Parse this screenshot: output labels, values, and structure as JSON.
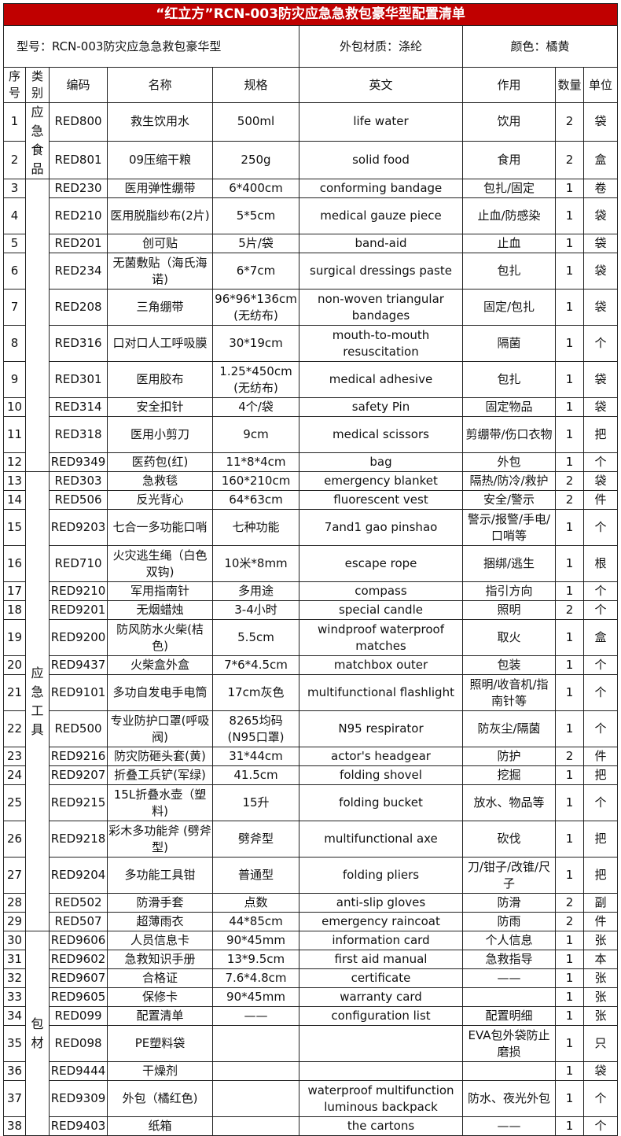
{
  "title": "“红立方”RCN-003防灾应急急救包豪华型配置清单",
  "info": {
    "model": "型号：RCN-003防灾应急急救包豪华型",
    "material": "外包材质：涤纶",
    "color": "颜色：橘黄"
  },
  "headers": [
    "序号",
    "类别",
    "编码",
    "名称",
    "规格",
    "英文",
    "作用",
    "数量",
    "单位"
  ],
  "categories": [
    {
      "label": "应急食品",
      "start": 1,
      "span": 2
    },
    {
      "label": "",
      "start": 3,
      "span": 10
    },
    {
      "label": "应急工具",
      "start": 13,
      "span": 17
    },
    {
      "label": "包材",
      "start": 30,
      "span": 9
    }
  ],
  "rows": [
    [
      "1",
      "RED800",
      "救生饮用水",
      "500ml",
      "life water",
      "饮用",
      "2",
      "袋"
    ],
    [
      "2",
      "RED801",
      "09压缩干粮",
      "250g",
      "solid food",
      "食用",
      "2",
      "盒"
    ],
    [
      "3",
      "RED230",
      "医用弹性绷带",
      "6*400cm",
      "conforming bandage",
      "包扎/固定",
      "1",
      "卷"
    ],
    [
      "4",
      "RED210",
      "医用脱脂纱布(2片)",
      "5*5cm",
      "medical gauze piece",
      "止血/防感染",
      "1",
      "袋"
    ],
    [
      "5",
      "RED201",
      "创可贴",
      "5片/袋",
      "band-aid",
      "止血",
      "1",
      "袋"
    ],
    [
      "6",
      "RED234",
      "无菌敷贴（海氏海诺)",
      "6*7cm",
      "surgical dressings paste",
      "包扎",
      "1",
      "袋"
    ],
    [
      "7",
      "RED208",
      "三角绷带",
      "96*96*136cm (无纺布)",
      "non-woven triangular bandages",
      "固定/包扎",
      "1",
      "袋"
    ],
    [
      "8",
      "RED316",
      "口对口人工呼吸膜",
      "30*19cm",
      "mouth-to-mouth resuscitation",
      "隔菌",
      "1",
      "个"
    ],
    [
      "9",
      "RED301",
      "医用胶布",
      "1.25*450cm (无纺布)",
      "medical adhesive",
      "包扎",
      "1",
      "袋"
    ],
    [
      "10",
      "RED314",
      "安全扣针",
      "4个/袋",
      "safety Pin",
      "固定物品",
      "1",
      "袋"
    ],
    [
      "11",
      "RED318",
      "医用小剪刀",
      "9cm",
      "medical scissors",
      "剪绷带/伤口衣物",
      "1",
      "把"
    ],
    [
      "12",
      "RED9349",
      "医药包(红)",
      "11*8*4cm",
      "bag",
      "外包",
      "1",
      "个"
    ],
    [
      "13",
      "RED303",
      "急救毯",
      "160*210cm",
      "emergency blanket",
      "隔热/防冷/救护",
      "2",
      "袋"
    ],
    [
      "14",
      "RED506",
      "反光背心",
      "64*63cm",
      "fluorescent vest",
      "安全/警示",
      "2",
      "件"
    ],
    [
      "15",
      "RED9203",
      "七合一多功能口哨",
      "七种功能",
      "7and1 gao pinshao",
      "警示/报警/手电/口哨等",
      "1",
      "个"
    ],
    [
      "16",
      "RED710",
      "火灾逃生绳（白色双钩)",
      "10米*8mm",
      "escape rope",
      "捆绑/逃生",
      "1",
      "根"
    ],
    [
      "17",
      "RED9210",
      "军用指南针",
      "多用途",
      "compass",
      "指引方向",
      "1",
      "个"
    ],
    [
      "18",
      "RED9201",
      "无烟蜡烛",
      "3-4小时",
      "special candle",
      "照明",
      "2",
      "个"
    ],
    [
      "19",
      "RED9200",
      "防风防水火柴(桔色)",
      "5.5cm",
      "windproof waterproof matches",
      "取火",
      "1",
      "盒"
    ],
    [
      "20",
      "RED9437",
      "火柴盒外盒",
      "7*6*4.5cm",
      "matchbox outer",
      "包装",
      "1",
      "个"
    ],
    [
      "21",
      "RED9101",
      "多功自发电手电筒",
      "17cm灰色",
      "multifunctional  flashlight",
      "照明/收音机/指南针等",
      "1",
      "个"
    ],
    [
      "22",
      "RED500",
      "专业防护口罩(呼吸阀)",
      "8265均码 (N95口罩)",
      "N95 respirator",
      "防灰尘/隔菌",
      "1",
      "个"
    ],
    [
      "23",
      "RED9216",
      "防灾防砸头套(黄)",
      "31*44cm",
      "actor's headgear",
      "防护",
      "2",
      "件"
    ],
    [
      "24",
      "RED9207",
      "折叠工兵铲(军绿)",
      "41.5cm",
      "folding shovel",
      "挖掘",
      "1",
      "把"
    ],
    [
      "25",
      "RED9215",
      "15L折叠水壶（塑料)",
      "15升",
      "folding bucket",
      "放水、物品等",
      "1",
      "个"
    ],
    [
      "26",
      "RED9218",
      "彩木多功能斧 (劈斧型)",
      "劈斧型",
      "multifunctional axe",
      "砍伐",
      "1",
      "把"
    ],
    [
      "27",
      "RED9204",
      "多功能工具钳",
      "普通型",
      "folding pliers",
      "刀/钳子/改锥/尺子",
      "1",
      "把"
    ],
    [
      "28",
      "RED502",
      "防滑手套",
      "点数",
      "anti-slip gloves",
      "防滑",
      "2",
      "副"
    ],
    [
      "29",
      "RED507",
      "超薄雨衣",
      "44*85cm",
      "emergency raincoat",
      "防雨",
      "2",
      "件"
    ],
    [
      "30",
      "RED9606",
      "人员信息卡",
      "90*45mm",
      "information card",
      "个人信息",
      "1",
      "张"
    ],
    [
      "31",
      "RED9602",
      "急救知识手册",
      "13*9.5cm",
      "first aid manual",
      "急救指导",
      "1",
      "本"
    ],
    [
      "32",
      "RED9607",
      "合格证",
      "7.6*4.8cm",
      "certificate",
      "——",
      "1",
      "张"
    ],
    [
      "33",
      "RED9605",
      "保修卡",
      "90*45mm",
      "warranty card",
      "",
      "1",
      "张"
    ],
    [
      "34",
      "RED099",
      "配置清单",
      "——",
      "configuration list",
      "配置明细",
      "1",
      "张"
    ],
    [
      "35",
      "RED098",
      "PE塑料袋",
      "",
      "",
      "EVA包外袋防止磨损",
      "1",
      "只"
    ],
    [
      "36",
      "RED9444",
      "干燥剂",
      "",
      "",
      "",
      "1",
      "袋"
    ],
    [
      "37",
      "RED9309",
      "外包（橘红色)",
      "",
      "waterproof multifunction luminous backpack",
      "防水、夜光外包",
      "1",
      "个"
    ],
    [
      "38",
      "RED9403",
      "纸箱",
      "",
      "the cartons",
      "——",
      "1",
      "个"
    ]
  ]
}
